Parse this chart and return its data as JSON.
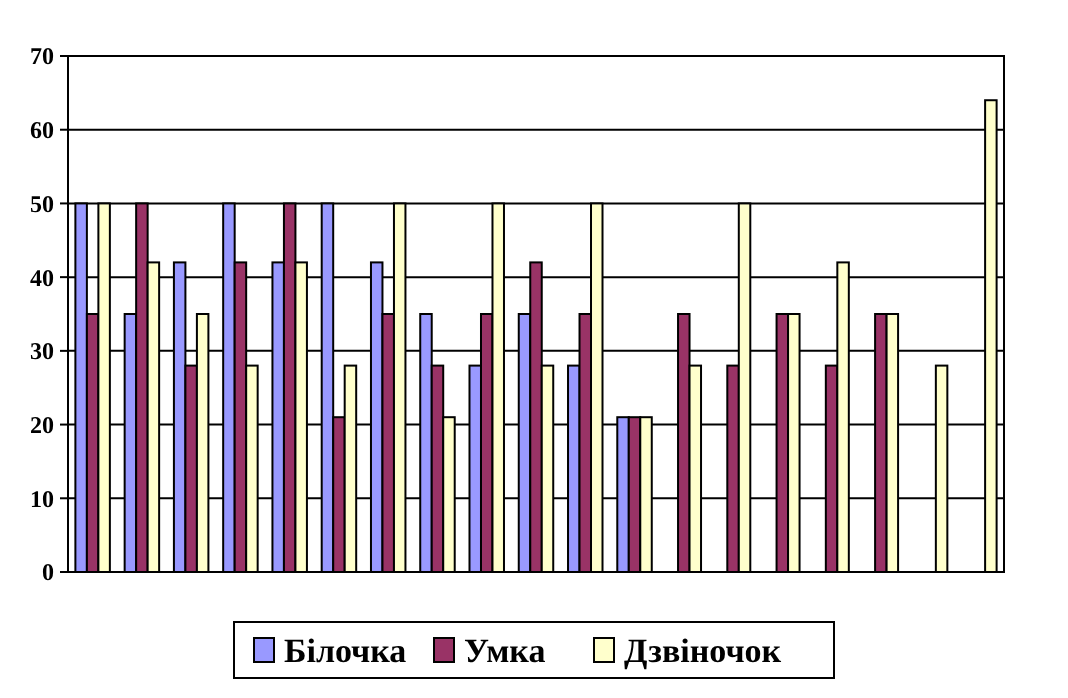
{
  "chart_data": {
    "type": "bar",
    "categories": [
      null,
      null,
      null,
      null,
      null,
      null,
      null,
      null,
      null,
      null,
      null,
      null,
      null,
      null,
      null,
      null,
      null,
      null,
      null
    ],
    "series": [
      {
        "name": "Білочка",
        "color": "#9999ff",
        "values": [
          50,
          35,
          42,
          50,
          42,
          50,
          42,
          35,
          28,
          35,
          28,
          21,
          null,
          null,
          null,
          null,
          null,
          null,
          null
        ]
      },
      {
        "name": "Умка",
        "color": "#993366",
        "values": [
          35,
          50,
          28,
          42,
          50,
          21,
          35,
          28,
          35,
          42,
          35,
          21,
          35,
          28,
          35,
          28,
          35,
          null,
          null
        ]
      },
      {
        "name": "Дзвіночок",
        "color": "#ffffcc",
        "values": [
          50,
          42,
          35,
          28,
          42,
          28,
          50,
          21,
          50,
          28,
          50,
          21,
          28,
          50,
          35,
          42,
          35,
          28,
          64
        ]
      }
    ],
    "ylim": [
      0,
      70
    ],
    "yticks": [
      0,
      10,
      20,
      30,
      40,
      50,
      60,
      70
    ],
    "grid": "y",
    "legend": "bottom"
  }
}
